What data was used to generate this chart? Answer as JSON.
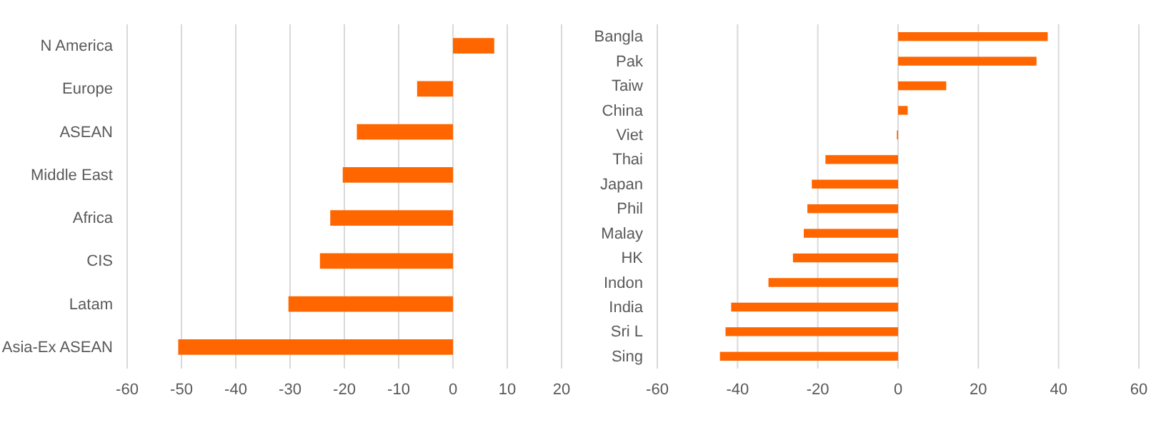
{
  "chart_data": [
    {
      "type": "bar",
      "orientation": "horizontal",
      "categories": [
        "N America",
        "Europe",
        "ASEAN",
        "Middle East",
        "Africa",
        "CIS",
        "Latam",
        "Asia-Ex ASEAN"
      ],
      "values": [
        7.6,
        -6.6,
        -17.7,
        -20.3,
        -22.6,
        -24.5,
        -30.3,
        -50.6
      ],
      "color": "#ff6600",
      "xlim": [
        -60,
        20
      ],
      "xticks": [
        -60,
        -50,
        -40,
        -30,
        -20,
        -10,
        0,
        10,
        20
      ],
      "grid": "x"
    },
    {
      "type": "bar",
      "orientation": "horizontal",
      "categories": [
        "Bangla",
        "Pak",
        "Taiw",
        "China",
        "Viet",
        "Thai",
        "Japan",
        "Phil",
        "Malay",
        "HK",
        "Indon",
        "India",
        "Sri L",
        "Sing"
      ],
      "values": [
        37.3,
        34.5,
        12,
        2.4,
        -0.3,
        -18.1,
        -21.5,
        -22.6,
        -23.5,
        -26.2,
        -32.3,
        -41.6,
        -43,
        -44.4
      ],
      "color": "#ff6600",
      "xlim": [
        -60,
        60
      ],
      "xticks": [
        -60,
        -40,
        -20,
        0,
        20,
        40,
        60
      ],
      "grid": "x"
    }
  ]
}
